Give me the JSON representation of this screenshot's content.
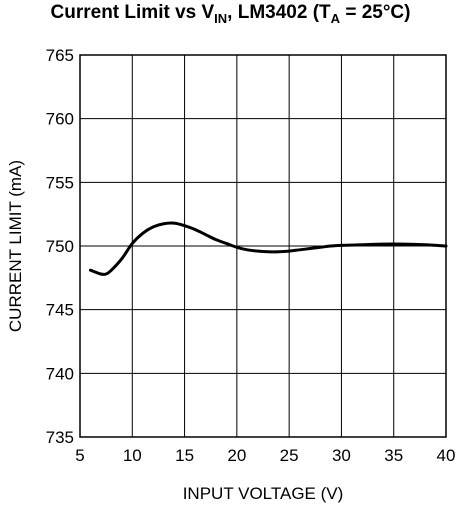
{
  "chart_data": {
    "type": "line",
    "title": {
      "main": "Current Limit vs V",
      "vin_sub": "IN",
      "mid": ", LM3402 (T",
      "ta_sub": "A",
      "end": " = 25°C)"
    },
    "xlabel": "INPUT VOLTAGE (V)",
    "ylabel": "CURRENT LIMIT (mA)",
    "xlim": [
      5,
      40
    ],
    "ylim": [
      735,
      765
    ],
    "xticks": [
      5,
      10,
      15,
      20,
      25,
      30,
      35,
      40
    ],
    "yticks": [
      735,
      740,
      745,
      750,
      755,
      760,
      765
    ],
    "grid": true,
    "series": [
      {
        "x": [
          6,
          7,
          7.5,
          8,
          9,
          10,
          11,
          12,
          13,
          14,
          15,
          16,
          17,
          18,
          19,
          20,
          21,
          22,
          23,
          24,
          25,
          26,
          27,
          28,
          29,
          30,
          32,
          34,
          36,
          38,
          40
        ],
        "values": [
          748.1,
          747.8,
          747.8,
          748.1,
          749.0,
          750.2,
          751.0,
          751.5,
          751.75,
          751.8,
          751.6,
          751.3,
          750.9,
          750.5,
          750.2,
          749.9,
          749.7,
          749.6,
          749.55,
          749.55,
          749.6,
          749.7,
          749.8,
          749.9,
          750.0,
          750.05,
          750.1,
          750.15,
          750.15,
          750.1,
          750.0
        ]
      }
    ]
  }
}
